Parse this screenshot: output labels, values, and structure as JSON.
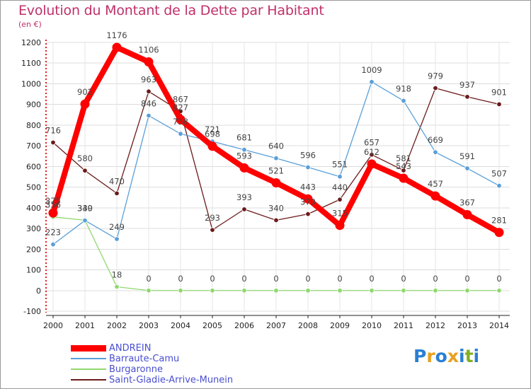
{
  "title": "Evolution du Montant de la Dette par Habitant",
  "unit_label": "(en €)",
  "logo": {
    "text": "Proxiti",
    "letters": [
      "P",
      "r",
      "o",
      "x",
      "i",
      "t",
      "i"
    ],
    "colors": [
      "#2a7fd4",
      "#e8a020",
      "#2a7fd4",
      "#e8a020",
      "#2a7fd4",
      "#80b020",
      "#2a7fd4"
    ]
  },
  "chart_data": {
    "type": "line",
    "x": [
      "2000",
      "2001",
      "2002",
      "2003",
      "2004",
      "2005",
      "2006",
      "2007",
      "2008",
      "2009",
      "2010",
      "2011",
      "2012",
      "2013",
      "2014"
    ],
    "ylim": [
      -100,
      1200
    ],
    "yticks": [
      -100,
      0,
      100,
      200,
      300,
      400,
      500,
      600,
      700,
      800,
      900,
      1000,
      1100,
      1200
    ],
    "grid": true,
    "legend_position": "bottom-left",
    "series": [
      {
        "name": "Saint-Gladie-Arrive-Munein",
        "color": "#6b1a1a",
        "values": [
          716,
          580,
          470,
          963,
          867,
          293,
          393,
          340,
          370,
          440,
          657,
          581,
          979,
          937,
          901
        ],
        "labels": [
          "716",
          "580",
          "470",
          "963",
          "867",
          "293",
          "393",
          "340",
          "370",
          "440",
          "657",
          "581",
          "979",
          "937",
          "901"
        ]
      },
      {
        "name": "Burgaronne",
        "color": "#90d870",
        "values": [
          356,
          340,
          18,
          0,
          0,
          0,
          0,
          0,
          0,
          0,
          0,
          0,
          0,
          0,
          0
        ],
        "labels": [
          "356",
          "340",
          "18",
          "0",
          "0",
          "0",
          "0",
          "0",
          "0",
          "0",
          "0",
          "0",
          "0",
          "0",
          "0"
        ]
      },
      {
        "name": "Barraute-Camu",
        "color": "#5a9fd8",
        "values": [
          223,
          339,
          249,
          846,
          758,
          721,
          681,
          640,
          596,
          551,
          1009,
          918,
          669,
          591,
          507
        ],
        "labels": [
          "223",
          "339",
          "249",
          "846",
          "758",
          "721",
          "681",
          "640",
          "596",
          "551",
          "1009",
          "918",
          "669",
          "591",
          "507"
        ]
      },
      {
        "name": "ANDREIN",
        "color": "#ff0000",
        "values": [
          375,
          902,
          1176,
          1106,
          827,
          698,
          593,
          521,
          443,
          315,
          612,
          543,
          457,
          367,
          281
        ],
        "labels": [
          "375",
          "902",
          "1176",
          "1106",
          "827",
          "698",
          "593",
          "521",
          "443",
          "315",
          "612",
          "543",
          "457",
          "367",
          "281"
        ]
      }
    ]
  },
  "legend": [
    {
      "name": "ANDREIN",
      "color": "#ff0000"
    },
    {
      "name": "Barraute-Camu",
      "color": "#5a9fd8"
    },
    {
      "name": "Burgaronne",
      "color": "#90d870"
    },
    {
      "name": "Saint-Gladie-Arrive-Munein",
      "color": "#6b1a1a"
    }
  ]
}
